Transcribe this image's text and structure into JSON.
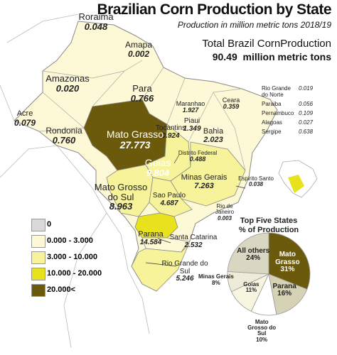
{
  "header": {
    "title": "Brazilian Corn Production by State",
    "subtitle": "Production in million metric tons 2018/19",
    "total_label": "Total Brazil CornProduction",
    "total_value": "90.49",
    "total_unit": "million metric tons"
  },
  "states": [
    {
      "name": "Roraima",
      "value": "0.048",
      "color": "#fdf8d5"
    },
    {
      "name": "Amapa",
      "value": "0.002",
      "color": "#fdf8d5"
    },
    {
      "name": "Amazonas",
      "value": "0.020",
      "color": "#fdf8d5"
    },
    {
      "name": "Para",
      "value": "0.766",
      "color": "#fdf8d5"
    },
    {
      "name": "Maranhao",
      "value": "1.927",
      "color": "#fdf8d5"
    },
    {
      "name": "Ceara",
      "value": "0.359",
      "color": "#fdf8d5"
    },
    {
      "name": "Rio Grande do Norte",
      "value": "0.019",
      "color": "#fdf8d5"
    },
    {
      "name": "Paraiba",
      "value": "0.056",
      "color": "#fdf8d5"
    },
    {
      "name": "Pernambuco",
      "value": "0.109",
      "color": "#fdf8d5"
    },
    {
      "name": "Alagoas",
      "value": "0.027",
      "color": "#fdf8d5"
    },
    {
      "name": "Sergipe",
      "value": "0.638",
      "color": "#fdf8d5"
    },
    {
      "name": "Piaui",
      "value": "1.349",
      "color": "#fdf8d5"
    },
    {
      "name": "Bahia",
      "value": "2.023",
      "color": "#fdf8d5"
    },
    {
      "name": "Tocantins",
      "value": "0.924",
      "color": "#fdf8d5"
    },
    {
      "name": "Acre",
      "value": "0.079",
      "color": "#fdf8d5"
    },
    {
      "name": "Rondonia",
      "value": "0.760",
      "color": "#fdf8d5"
    },
    {
      "name": "Mato Grasso",
      "value": "27.773",
      "color": "#6b5a0b"
    },
    {
      "name": "Distrito Federal",
      "value": "0.488",
      "color": "#fdf8d5"
    },
    {
      "name": "Goias",
      "value": "9.804",
      "color": "#f6f39a"
    },
    {
      "name": "Minas Gerais",
      "value": "7.263",
      "color": "#f6f39a"
    },
    {
      "name": "Espirito Santo",
      "value": "0.038",
      "color": "#fdf8d5"
    },
    {
      "name": "Mato Grosso do Sul",
      "value": "8.963",
      "color": "#f6f39a"
    },
    {
      "name": "Sao Paulo",
      "value": "4.687",
      "color": "#f6f39a"
    },
    {
      "name": "Rio de Janeiro",
      "value": "0.003",
      "color": "#fdf8d5"
    },
    {
      "name": "Parana",
      "value": "14.584",
      "color": "#e8e21e"
    },
    {
      "name": "Santa Catarina",
      "value": "2.532",
      "color": "#fdf8d5"
    },
    {
      "name": "Rio Grande do Sul",
      "value": "5.246",
      "color": "#f6f39a"
    }
  ],
  "legend": [
    {
      "label": "0",
      "color": "#d9d9d9"
    },
    {
      "label": "0.000 - 3.000",
      "color": "#fdf8d5"
    },
    {
      "label": "3.000 - 10.000",
      "color": "#f6f39a"
    },
    {
      "label": "10.000 - 20.000",
      "color": "#e8e21e"
    },
    {
      "label": "20.000<",
      "color": "#6b5a0b"
    }
  ],
  "chart_data": {
    "type": "pie",
    "title": "Top Five States",
    "subtitle": "% of Production",
    "categories": [
      "Mato Grasso",
      "Parana",
      "Mato Grosso do Sul",
      "Goias",
      "Minas Gerais",
      "All others"
    ],
    "values": [
      31,
      16,
      10,
      11,
      8,
      24
    ],
    "value_labels": [
      "31%",
      "16%",
      "10%",
      "11%",
      "8%",
      "24%"
    ],
    "colors": [
      "#6b5a0b",
      "#d6d2b5",
      "#ffffff",
      "#f6f5e0",
      "#eeecd8",
      "#d9d6c2"
    ]
  }
}
